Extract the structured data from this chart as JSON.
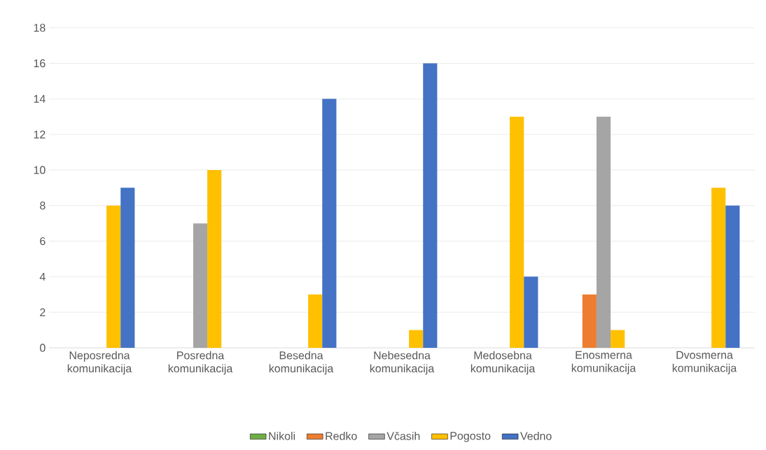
{
  "chart_data": {
    "type": "bar",
    "categories": [
      "Neposredna komunikacija",
      "Posredna komunikacija",
      "Besedna komunikacija",
      "Nebesedna komunikacija",
      "Medosebna komunikacija",
      "Enosmerna komunikacija",
      "Dvosmerna komunikacija"
    ],
    "series": [
      {
        "name": "Nikoli",
        "color": "#70ad47",
        "values": [
          0,
          0,
          0,
          0,
          0,
          0,
          0
        ]
      },
      {
        "name": "Redko",
        "color": "#ed7d31",
        "values": [
          0,
          0,
          0,
          0,
          0,
          3,
          0
        ]
      },
      {
        "name": "Včasih",
        "color": "#a5a5a5",
        "values": [
          0,
          7,
          0,
          0,
          0,
          13,
          0
        ]
      },
      {
        "name": "Pogosto",
        "color": "#ffc000",
        "values": [
          8,
          10,
          3,
          1,
          13,
          1,
          9
        ]
      },
      {
        "name": "Vedno",
        "color": "#4472c4",
        "values": [
          9,
          0,
          14,
          16,
          4,
          0,
          8
        ]
      }
    ],
    "ylim": [
      0,
      18
    ],
    "yticks": [
      0,
      2,
      4,
      6,
      8,
      10,
      12,
      14,
      16,
      18
    ],
    "grid": "y",
    "legend": "bottom"
  }
}
